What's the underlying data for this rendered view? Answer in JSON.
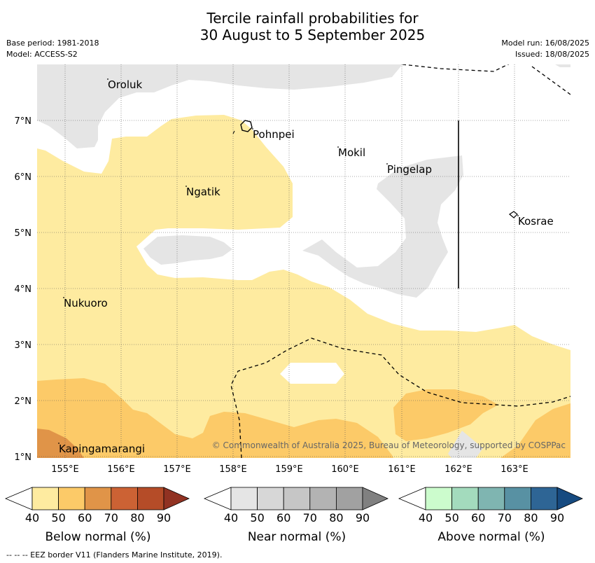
{
  "title_line1": "Tercile rainfall probabilities for",
  "title_line2": "30 August to 5 September 2025",
  "meta": {
    "base_period": "Base period: 1981-2018",
    "model": "Model: ACCESS-S2",
    "model_run": "Model run: 16/08/2025",
    "issued": "Issued: 18/08/2025"
  },
  "map": {
    "lat_labels": [
      "1°N",
      "2°N",
      "3°N",
      "4°N",
      "5°N",
      "6°N",
      "7°N"
    ],
    "lon_labels": [
      "155°E",
      "156°E",
      "157°E",
      "158°E",
      "159°E",
      "160°E",
      "161°E",
      "162°E",
      "163°E"
    ],
    "places": [
      "Oroluk",
      "Pohnpei",
      "Mokil",
      "Pingelap",
      "Ngatik",
      "Kosrae",
      "Nukuoro",
      "Kapingamarangi"
    ],
    "copyright": "© Commonwealth of Australia 2025, Bureau of Meteorology, supported by COSPPac"
  },
  "colorbars": [
    {
      "label": "Below normal (%)",
      "ticks": [
        "40",
        "50",
        "60",
        "70",
        "80",
        "90"
      ],
      "colors": [
        "#ffffff",
        "#feeba0",
        "#fcca68",
        "#e09448",
        "#cc6234",
        "#b54c28",
        "#913222"
      ]
    },
    {
      "label": "Near normal (%)",
      "ticks": [
        "40",
        "50",
        "60",
        "70",
        "80",
        "90"
      ],
      "colors": [
        "#ffffff",
        "#e5e5e5",
        "#d7d7d7",
        "#c6c6c6",
        "#b3b3b3",
        "#a1a1a1",
        "#808080"
      ]
    },
    {
      "label": "Above normal (%)",
      "ticks": [
        "40",
        "50",
        "60",
        "70",
        "80",
        "90"
      ],
      "colors": [
        "#ffffff",
        "#ccfccd",
        "#a3dbbd",
        "#7fb5b1",
        "#5891a3",
        "#2e6595",
        "#164a80"
      ]
    }
  ],
  "footer": "--  --  -- EEZ border V11 (Flanders Marine Institute, 2019)."
}
